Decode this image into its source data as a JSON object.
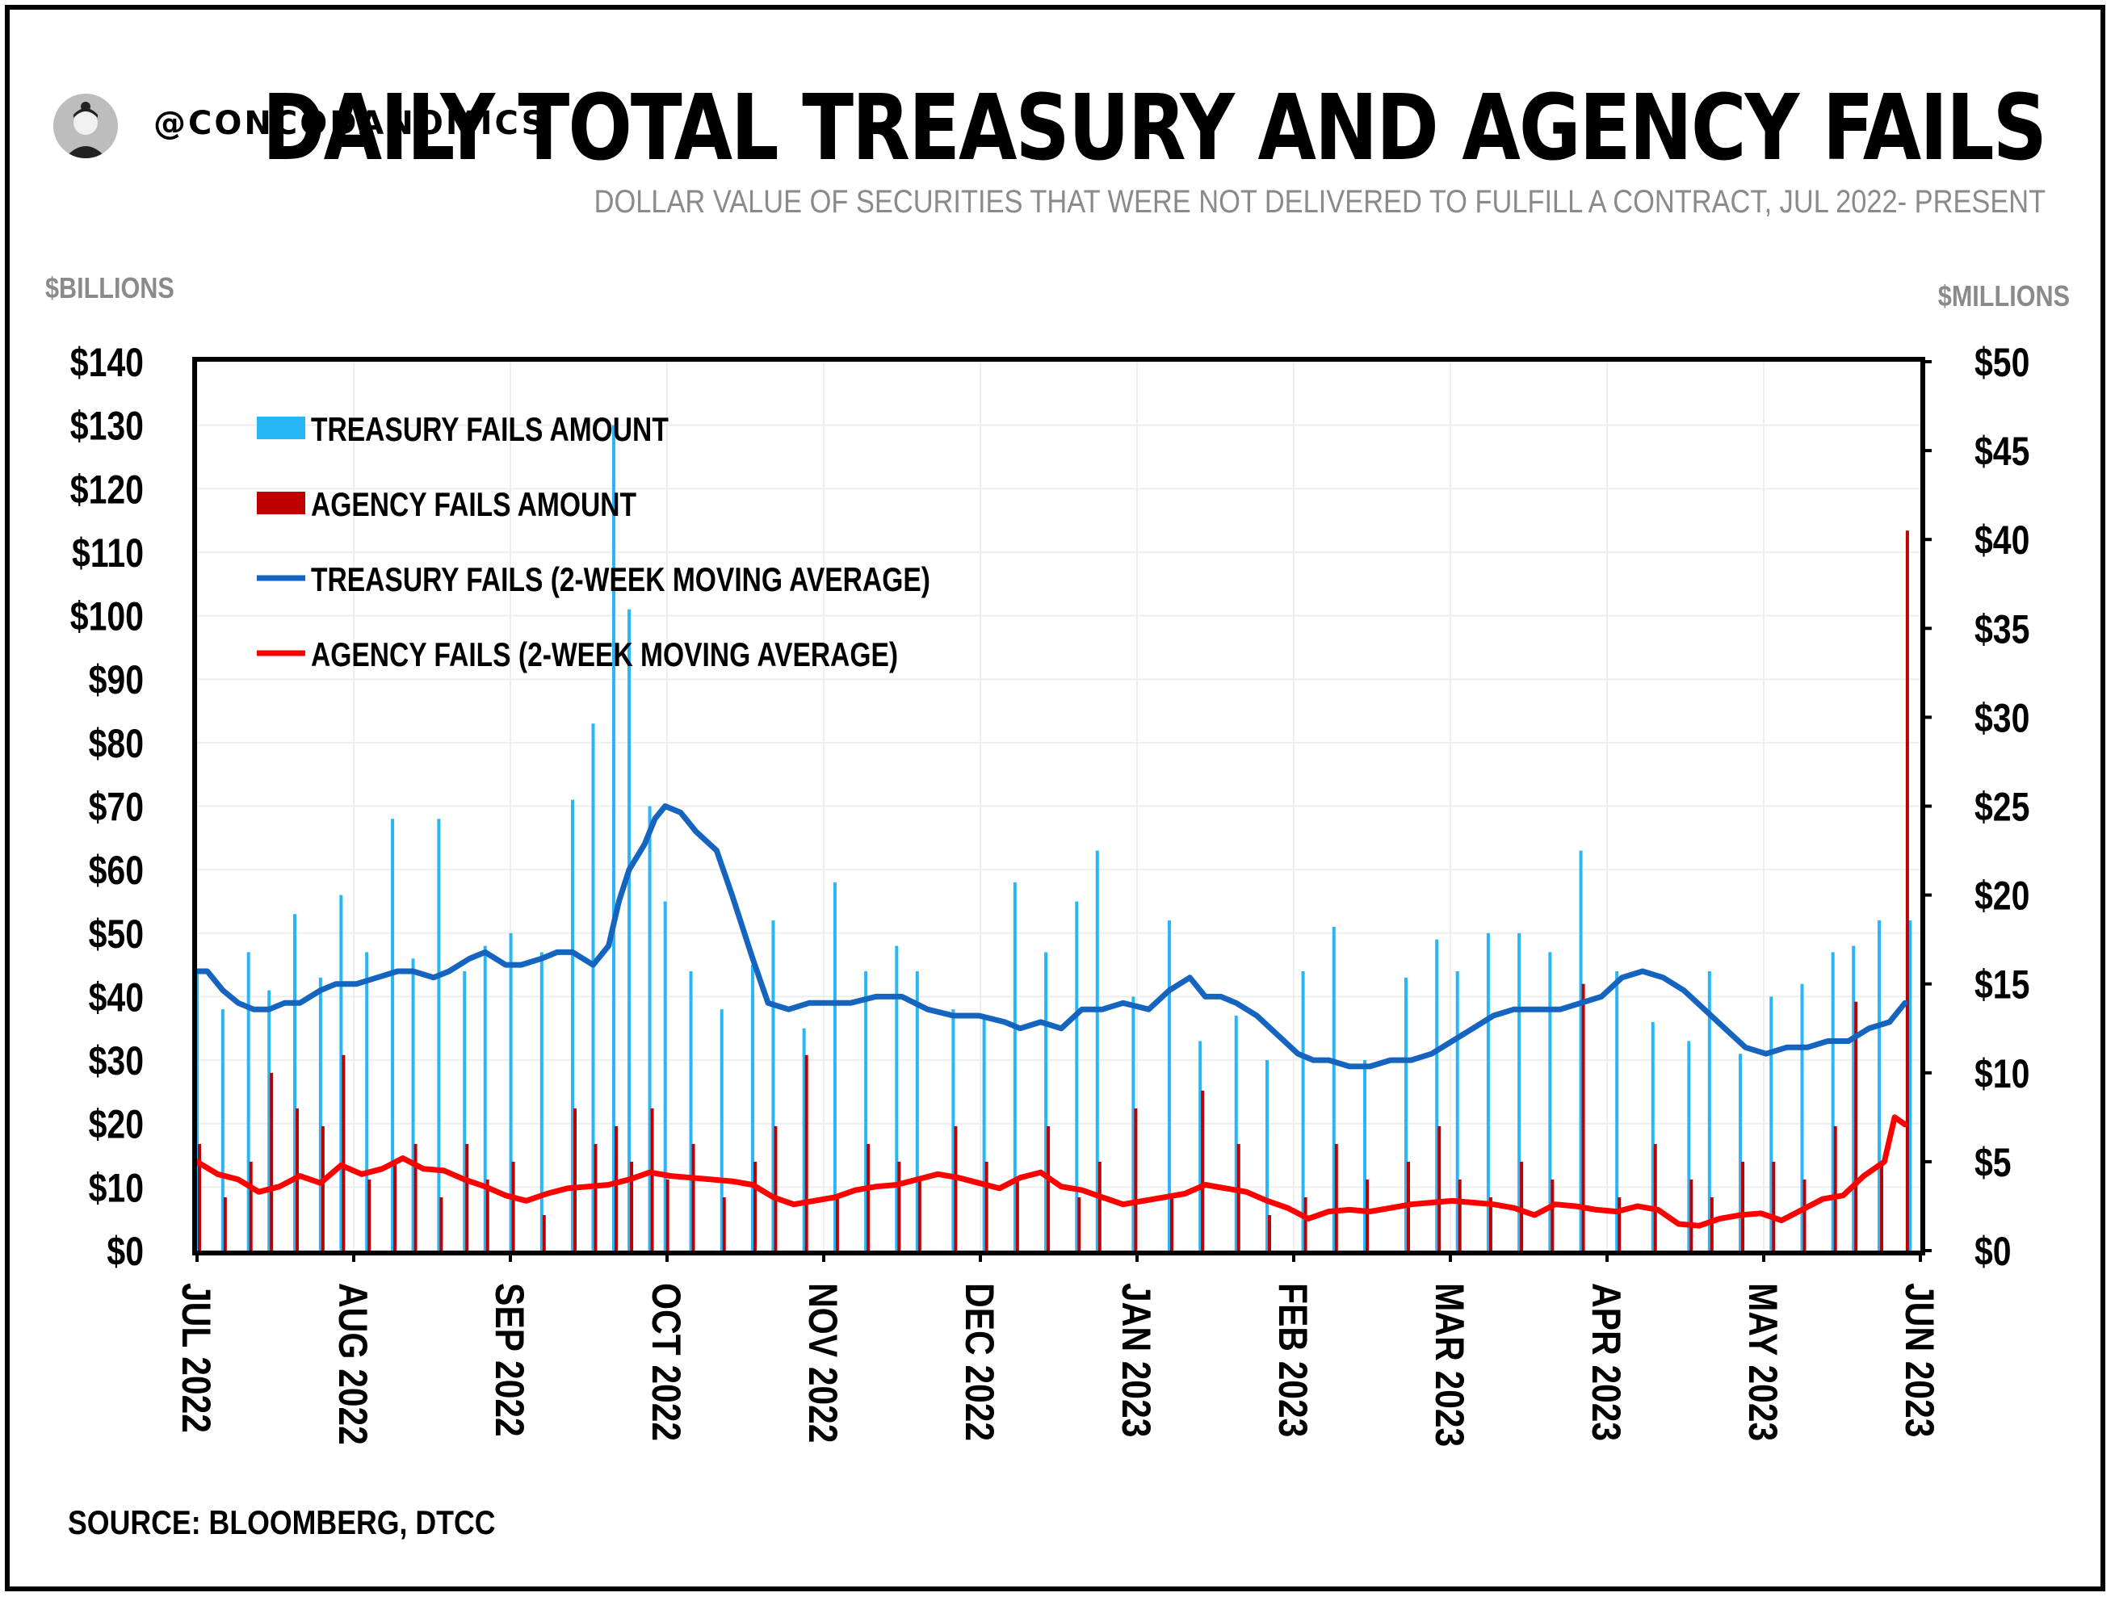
{
  "header": {
    "handle": "@CONCODANOMICS",
    "title": "DAILY TOTAL TREASURY AND AGENCY FAILS",
    "subtitle": "DOLLAR VALUE OF SECURITIES THAT WERE NOT DELIVERED TO FULFILL A CONTRACT, JUL 2022- PRESENT"
  },
  "footer": {
    "source": "SOURCE: BLOOMBERG, DTCC"
  },
  "colors": {
    "treasury_bar": "#29b6f6",
    "agency_bar": "#c00000",
    "treasury_ma": "#1565c0",
    "agency_ma": "#ff0000",
    "grid": "#eeeeee"
  },
  "icons": {
    "avatar": "author-avatar-icon"
  },
  "chart_data": {
    "type": "bar",
    "left_axis": {
      "unit_label": "$BILLIONS",
      "ylim": [
        0,
        140
      ],
      "ticks": [
        "$0",
        "$10",
        "$20",
        "$30",
        "$40",
        "$50",
        "$60",
        "$70",
        "$80",
        "$90",
        "$100",
        "$110",
        "$120",
        "$130",
        "$140"
      ]
    },
    "right_axis": {
      "unit_label": "$MILLIONS",
      "ylim": [
        0,
        50
      ],
      "ticks": [
        "$0",
        "$5",
        "$10",
        "$15",
        "$20",
        "$25",
        "$30",
        "$35",
        "$40",
        "$45",
        "$50"
      ]
    },
    "x_ticks": [
      "JUL 2022",
      "AUG 2022",
      "SEP 2022",
      "OCT 2022",
      "NOV 2022",
      "DEC 2022",
      "JAN 2023",
      "FEB 2023",
      "MAR 2023",
      "APR 2023",
      "MAY 2023",
      "JUN 2023"
    ],
    "xlim": [
      "2022-07-01",
      "2023-06-01"
    ],
    "grid": true,
    "legend_position": "top-left",
    "series": [
      {
        "name": "TREASURY FAILS AMOUNT",
        "type": "bar",
        "axis": "left",
        "x": [
          "2022-07-01",
          "2022-07-06",
          "2022-07-11",
          "2022-07-15",
          "2022-07-20",
          "2022-07-25",
          "2022-07-29",
          "2022-08-03",
          "2022-08-08",
          "2022-08-12",
          "2022-08-17",
          "2022-08-22",
          "2022-08-26",
          "2022-08-31",
          "2022-09-06",
          "2022-09-12",
          "2022-09-16",
          "2022-09-20",
          "2022-09-23",
          "2022-09-27",
          "2022-09-30",
          "2022-10-05",
          "2022-10-11",
          "2022-10-17",
          "2022-10-21",
          "2022-10-27",
          "2022-11-02",
          "2022-11-08",
          "2022-11-14",
          "2022-11-18",
          "2022-11-25",
          "2022-12-01",
          "2022-12-07",
          "2022-12-13",
          "2022-12-19",
          "2022-12-23",
          "2022-12-30",
          "2023-01-06",
          "2023-01-12",
          "2023-01-19",
          "2023-01-25",
          "2023-02-01",
          "2023-02-07",
          "2023-02-13",
          "2023-02-21",
          "2023-02-27",
          "2023-03-03",
          "2023-03-09",
          "2023-03-15",
          "2023-03-21",
          "2023-03-27",
          "2023-04-03",
          "2023-04-10",
          "2023-04-17",
          "2023-04-21",
          "2023-04-27",
          "2023-05-03",
          "2023-05-09",
          "2023-05-15",
          "2023-05-19",
          "2023-05-24",
          "2023-05-30"
        ],
        "values": [
          44,
          38,
          47,
          41,
          53,
          43,
          56,
          47,
          68,
          46,
          68,
          44,
          48,
          50,
          47,
          71,
          83,
          130,
          101,
          70,
          55,
          44,
          38,
          45,
          52,
          35,
          58,
          44,
          48,
          44,
          38,
          37,
          58,
          47,
          55,
          63,
          40,
          52,
          33,
          37,
          30,
          44,
          51,
          30,
          43,
          49,
          44,
          50,
          50,
          47,
          63,
          44,
          36,
          33,
          44,
          31,
          40,
          42,
          47,
          48,
          52,
          52
        ]
      },
      {
        "name": "AGENCY FAILS AMOUNT",
        "type": "bar",
        "axis": "right",
        "x": [
          "2022-07-01",
          "2022-07-06",
          "2022-07-11",
          "2022-07-15",
          "2022-07-20",
          "2022-07-25",
          "2022-07-29",
          "2022-08-03",
          "2022-08-08",
          "2022-08-12",
          "2022-08-17",
          "2022-08-22",
          "2022-08-26",
          "2022-08-31",
          "2022-09-06",
          "2022-09-12",
          "2022-09-16",
          "2022-09-20",
          "2022-09-23",
          "2022-09-27",
          "2022-09-30",
          "2022-10-05",
          "2022-10-11",
          "2022-10-17",
          "2022-10-21",
          "2022-10-27",
          "2022-11-02",
          "2022-11-08",
          "2022-11-14",
          "2022-11-18",
          "2022-11-25",
          "2022-12-01",
          "2022-12-07",
          "2022-12-13",
          "2022-12-19",
          "2022-12-23",
          "2022-12-30",
          "2023-01-06",
          "2023-01-12",
          "2023-01-19",
          "2023-01-25",
          "2023-02-01",
          "2023-02-07",
          "2023-02-13",
          "2023-02-21",
          "2023-02-27",
          "2023-03-03",
          "2023-03-09",
          "2023-03-15",
          "2023-03-21",
          "2023-03-27",
          "2023-04-03",
          "2023-04-10",
          "2023-04-17",
          "2023-04-21",
          "2023-04-27",
          "2023-05-03",
          "2023-05-09",
          "2023-05-15",
          "2023-05-19",
          "2023-05-24",
          "2023-05-29"
        ],
        "values": [
          6,
          3,
          5,
          10,
          8,
          7,
          11,
          4,
          5,
          6,
          3,
          6,
          4,
          5,
          2,
          8,
          6,
          7,
          5,
          8,
          4,
          6,
          3,
          5,
          7,
          11,
          3,
          6,
          5,
          4,
          7,
          5,
          4,
          7,
          3,
          5,
          8,
          3,
          9,
          6,
          2,
          3,
          6,
          4,
          5,
          7,
          4,
          3,
          5,
          4,
          15,
          3,
          6,
          4,
          3,
          5,
          5,
          4,
          7,
          14,
          5,
          40.5
        ]
      },
      {
        "name": "TREASURY FAILS (2-WEEK MOVING AVERAGE)",
        "type": "line",
        "axis": "left",
        "x": [
          "2022-07-01",
          "2022-07-03",
          "2022-07-06",
          "2022-07-09",
          "2022-07-12",
          "2022-07-15",
          "2022-07-18",
          "2022-07-21",
          "2022-07-25",
          "2022-07-28",
          "2022-08-01",
          "2022-08-05",
          "2022-08-09",
          "2022-08-12",
          "2022-08-16",
          "2022-08-19",
          "2022-08-23",
          "2022-08-26",
          "2022-08-30",
          "2022-09-02",
          "2022-09-06",
          "2022-09-09",
          "2022-09-12",
          "2022-09-14",
          "2022-09-16",
          "2022-09-19",
          "2022-09-21",
          "2022-09-23",
          "2022-09-26",
          "2022-09-28",
          "2022-09-30",
          "2022-10-03",
          "2022-10-06",
          "2022-10-10",
          "2022-10-13",
          "2022-10-17",
          "2022-10-20",
          "2022-10-24",
          "2022-10-28",
          "2022-11-01",
          "2022-11-05",
          "2022-11-10",
          "2022-11-15",
          "2022-11-20",
          "2022-11-25",
          "2022-11-30",
          "2022-12-05",
          "2022-12-08",
          "2022-12-12",
          "2022-12-16",
          "2022-12-20",
          "2022-12-24",
          "2022-12-28",
          "2023-01-02",
          "2023-01-06",
          "2023-01-10",
          "2023-01-13",
          "2023-01-16",
          "2023-01-19",
          "2023-01-23",
          "2023-01-27",
          "2023-01-31",
          "2023-02-03",
          "2023-02-06",
          "2023-02-10",
          "2023-02-14",
          "2023-02-18",
          "2023-02-22",
          "2023-02-26",
          "2023-03-02",
          "2023-03-06",
          "2023-03-10",
          "2023-03-14",
          "2023-03-17",
          "2023-03-20",
          "2023-03-23",
          "2023-03-27",
          "2023-03-31",
          "2023-04-04",
          "2023-04-08",
          "2023-04-12",
          "2023-04-16",
          "2023-04-20",
          "2023-04-24",
          "2023-04-28",
          "2023-05-02",
          "2023-05-06",
          "2023-05-10",
          "2023-05-14",
          "2023-05-18",
          "2023-05-22",
          "2023-05-26",
          "2023-05-29"
        ],
        "values": [
          44,
          44,
          41,
          39,
          38,
          38,
          39,
          39,
          41,
          42,
          42,
          43,
          44,
          44,
          43,
          44,
          46,
          47,
          45,
          45,
          46,
          47,
          47,
          46,
          45,
          48,
          55,
          60,
          64,
          68,
          70,
          69,
          66,
          63,
          56,
          46,
          39,
          38,
          39,
          39,
          39,
          40,
          40,
          38,
          37,
          37,
          36,
          35,
          36,
          35,
          38,
          38,
          39,
          38,
          41,
          43,
          40,
          40,
          39,
          37,
          34,
          31,
          30,
          30,
          29,
          29,
          30,
          30,
          31,
          33,
          35,
          37,
          38,
          38,
          38,
          38,
          39,
          40,
          43,
          44,
          43,
          41,
          38,
          35,
          32,
          31,
          32,
          32,
          33,
          33,
          35,
          36,
          39
        ]
      },
      {
        "name": "AGENCY FAILS (2-WEEK MOVING AVERAGE)",
        "type": "line",
        "axis": "right",
        "x": [
          "2022-07-01",
          "2022-07-05",
          "2022-07-09",
          "2022-07-13",
          "2022-07-17",
          "2022-07-21",
          "2022-07-25",
          "2022-07-29",
          "2022-08-02",
          "2022-08-06",
          "2022-08-10",
          "2022-08-14",
          "2022-08-18",
          "2022-08-22",
          "2022-08-26",
          "2022-08-30",
          "2022-09-03",
          "2022-09-07",
          "2022-09-11",
          "2022-09-15",
          "2022-09-19",
          "2022-09-23",
          "2022-09-27",
          "2022-10-01",
          "2022-10-05",
          "2022-10-09",
          "2022-10-13",
          "2022-10-17",
          "2022-10-21",
          "2022-10-25",
          "2022-10-29",
          "2022-11-02",
          "2022-11-06",
          "2022-11-10",
          "2022-11-14",
          "2022-11-18",
          "2022-11-22",
          "2022-11-26",
          "2022-11-30",
          "2022-12-04",
          "2022-12-08",
          "2022-12-12",
          "2022-12-16",
          "2022-12-20",
          "2022-12-24",
          "2022-12-28",
          "2023-01-01",
          "2023-01-05",
          "2023-01-09",
          "2023-01-13",
          "2023-01-17",
          "2023-01-21",
          "2023-01-25",
          "2023-01-29",
          "2023-02-02",
          "2023-02-06",
          "2023-02-10",
          "2023-02-14",
          "2023-02-18",
          "2023-02-22",
          "2023-02-26",
          "2023-03-02",
          "2023-03-06",
          "2023-03-10",
          "2023-03-14",
          "2023-03-18",
          "2023-03-22",
          "2023-03-26",
          "2023-03-30",
          "2023-04-03",
          "2023-04-07",
          "2023-04-11",
          "2023-04-15",
          "2023-04-19",
          "2023-04-23",
          "2023-04-27",
          "2023-05-01",
          "2023-05-05",
          "2023-05-09",
          "2023-05-13",
          "2023-05-17",
          "2023-05-21",
          "2023-05-25",
          "2023-05-27",
          "2023-05-29"
        ],
        "values": [
          5,
          4.3,
          4,
          3.3,
          3.6,
          4.2,
          3.8,
          4.8,
          4.3,
          4.6,
          5.2,
          4.6,
          4.5,
          4,
          3.6,
          3.1,
          2.8,
          3.2,
          3.5,
          3.6,
          3.7,
          4,
          4.4,
          4.2,
          4.1,
          4,
          3.9,
          3.7,
          3,
          2.6,
          2.8,
          3,
          3.4,
          3.6,
          3.7,
          4,
          4.3,
          4.1,
          3.8,
          3.5,
          4.1,
          4.4,
          3.6,
          3.4,
          3,
          2.6,
          2.8,
          3,
          3.2,
          3.7,
          3.5,
          3.3,
          2.8,
          2.4,
          1.8,
          2.2,
          2.3,
          2.2,
          2.4,
          2.6,
          2.7,
          2.8,
          2.7,
          2.6,
          2.4,
          2,
          2.6,
          2.5,
          2.3,
          2.2,
          2.5,
          2.3,
          1.5,
          1.4,
          1.8,
          2,
          2.1,
          1.7,
          2.3,
          2.9,
          3.1,
          4.2,
          5,
          7.5,
          7.1
        ]
      }
    ]
  },
  "legend": [
    {
      "label": "TREASURY FAILS AMOUNT"
    },
    {
      "label": "AGENCY FAILS AMOUNT"
    },
    {
      "label": "TREASURY FAILS (2-WEEK MOVING AVERAGE)"
    },
    {
      "label": "AGENCY FAILS (2-WEEK MOVING AVERAGE)"
    }
  ]
}
